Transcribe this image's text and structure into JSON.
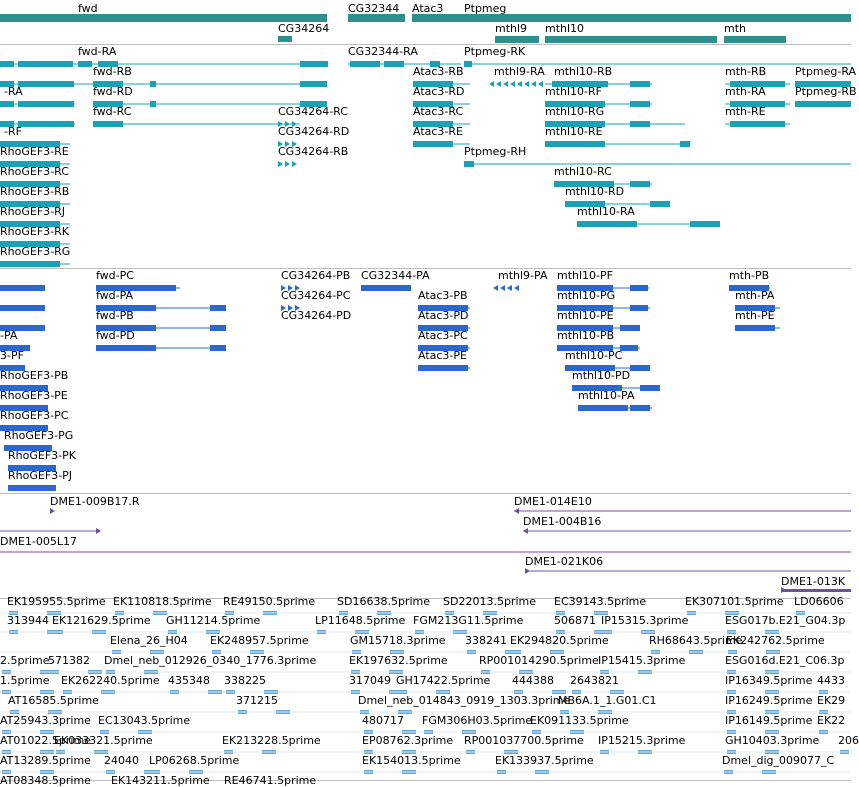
{
  "colors": {
    "gene": "#2e8f8b",
    "mrna": "#1aa1b5",
    "protein": "#2a67d0",
    "clone": "#6d4fa8",
    "est": "#5fa6d8",
    "separator": "#bdbdbd"
  },
  "track_genes": {
    "labels": [
      "fwd",
      "CG32344",
      "Atac3",
      "Ptpmeg",
      "CG34264",
      "mthl9",
      "mthl10",
      "mth"
    ]
  },
  "track_mrna": {
    "labels": [
      "fwd-RA",
      "CG32344-RA",
      "Ptpmeg-RK",
      "fwd-RB",
      "Atac3-RB",
      "mthl9-RA",
      "mthl10-RB",
      "mth-RB",
      "Ptpmeg-RA",
      "-RA",
      "fwd-RD",
      "Atac3-RD",
      "mthl10-RF",
      "mth-RA",
      "Ptpmeg-RB",
      "fwd-RC",
      "CG34264-RC",
      "Atac3-RC",
      "mthl10-RG",
      "mth-RE",
      "-RF",
      "CG34264-RD",
      "Atac3-RE",
      "mthl10-RE",
      "RhoGEF3-RE",
      "CG34264-RB",
      "Ptpmeg-RH",
      "RhoGEF3-RC",
      "mthl10-RC",
      "RhoGEF3-RB",
      "mthl10-RD",
      "RhoGEF3-RJ",
      "mthl10-RA",
      "RhoGEF3-RK",
      "RhoGEF3-RG"
    ]
  },
  "track_proteins": {
    "labels": [
      "fwd-PC",
      "CG34264-PB",
      "CG32344-PA",
      "mthl9-PA",
      "mthl10-PF",
      "mth-PB",
      "fwd-PA",
      "CG34264-PC",
      "Atac3-PB",
      "mthl10-PG",
      "mth-PA",
      "fwd-PB",
      "CG34264-PD",
      "Atac3-PD",
      "mthl10-PE",
      "mth-PE",
      "-PA",
      "fwd-PD",
      "Atac3-PC",
      "mthl10-PB",
      "3-PF",
      "Atac3-PE",
      "mthl10-PC",
      "RhoGEF3-PB",
      "mthl10-PD",
      "RhoGEF3-PE",
      "mthl10-PA",
      "RhoGEF3-PC",
      "RhoGEF3-PG",
      "RhoGEF3-PK",
      "RhoGEF3-PJ"
    ]
  },
  "track_clones": {
    "labels": [
      "DME1-009B17.R",
      "DME1-014E10",
      "DME1-004B16",
      "DME1-005L17",
      "DME1-021K06",
      "DME1-013K"
    ]
  },
  "track_ests": {
    "labels": [
      "EK195955.5prime",
      "EK110818.5prime",
      "RE49150.5prime",
      "SD16638.5prime",
      "SD22013.5prime",
      "EC39143.5prime",
      "EK307101.5prime",
      "LD06606",
      "313944",
      "EK121629.5prime",
      "GH11214.5prime",
      "LP11648.5prime",
      "FGM213G11.5prime",
      "506871",
      "IP15315.3prime",
      "ESG017b.E21_G04.3p",
      "Elena_26_H04",
      "EK248957.5prime",
      "GM15718.3prime",
      "338241",
      "EK294820.5prime",
      "RH68643.5prime",
      "EK242762.5prime",
      "2.5prime",
      "571382",
      "Dmel_neb_012926_0340_1776.3prime",
      "EK197632.5prime",
      "RP001014290.5prime",
      "IP15415.3prime",
      "ESG016d.E21_C06.3p",
      "1.5prime",
      "EK262240.5prime",
      "435348",
      "338225",
      "317049",
      "GH17422.5prime",
      "444388",
      "2643821",
      "IP16349.5prime",
      "4433",
      "AT16585.5prime",
      "371215",
      "Dmel_neb_014843_0919_1303.3prime",
      "MB6A.1_1.G01.C1",
      "IP16249.5prime",
      "EK29",
      "AT25943.3prime",
      "EC13043.5prime",
      "480717",
      "FGM306H03.5prime",
      "EK091133.5prime",
      "IP16149.5prime",
      "EK22",
      "AT01022.5prime",
      "EK033321.5prime",
      "EK213228.5prime",
      "EP08762.3prime",
      "RP001037700.5prime",
      "IP15215.3prime",
      "GH10403.3prime",
      "206",
      "AT13289.5prime",
      "24040",
      "LP06268.5prime",
      "EK154013.5prime",
      "EK133937.5prime",
      "Dmel_dig_009077_C",
      "AT08348.5prime",
      "EK143211.5prime",
      "RE46741.5prime"
    ]
  }
}
